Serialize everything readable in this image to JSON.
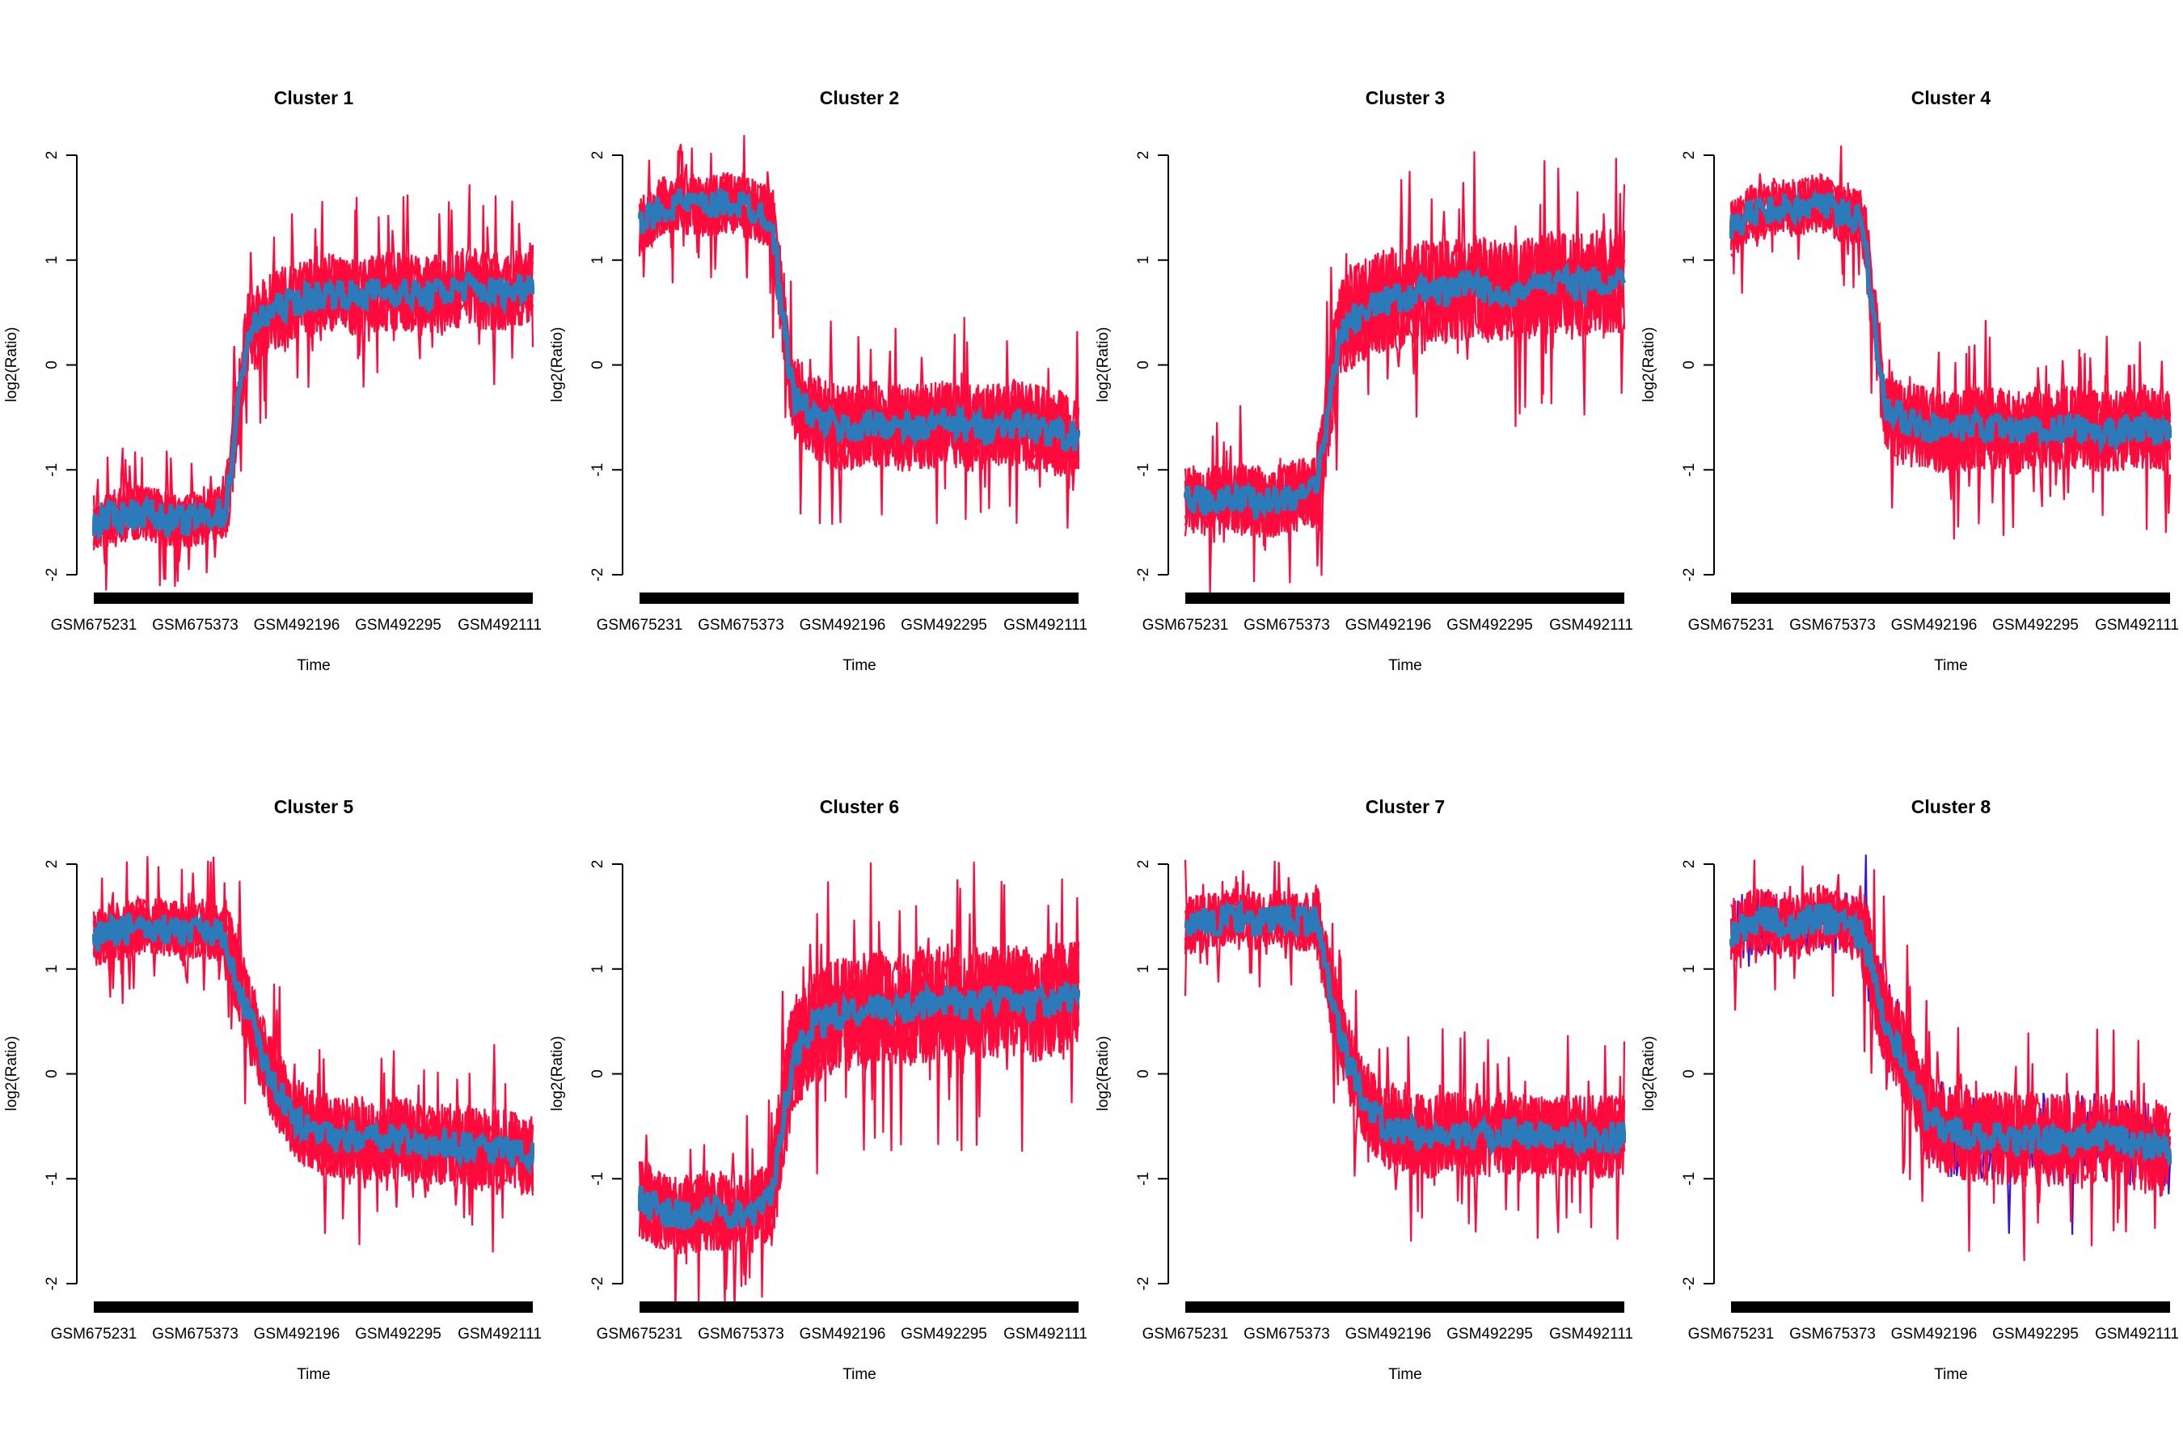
{
  "chart_data": {
    "type": "line",
    "layout": "2x4 grid",
    "colors": {
      "genes": "#ff0a3c",
      "genes_alt": "#3a14d6",
      "mean": "#2b7bba",
      "axis": "#000000"
    },
    "xlabel": "Time",
    "ylabel": "log2(Ratio)",
    "ylim": [
      -2.2,
      2.2
    ],
    "yticks": [
      "-2",
      "-1",
      "0",
      "1",
      "2"
    ],
    "xtick_labels": [
      "GSM675231",
      "GSM675373",
      "GSM492196",
      "GSM492295",
      "GSM492111"
    ],
    "panels": [
      {
        "title": "Cluster 1",
        "spread": 0.38,
        "mean_profile": [
          -1.5,
          -1.45,
          -1.4,
          -1.45,
          -1.5,
          -1.45,
          -1.4,
          0.3,
          0.5,
          0.6,
          0.65,
          0.7,
          0.65,
          0.7,
          0.7,
          0.65,
          0.7,
          0.75,
          0.7,
          0.7,
          0.8
        ]
      },
      {
        "title": "Cluster 2",
        "spread": 0.42,
        "mean_profile": [
          1.3,
          1.5,
          1.55,
          1.5,
          1.55,
          1.5,
          1.4,
          -0.3,
          -0.5,
          -0.6,
          -0.6,
          -0.55,
          -0.6,
          -0.6,
          -0.55,
          -0.6,
          -0.6,
          -0.55,
          -0.6,
          -0.65,
          -0.7
        ]
      },
      {
        "title": "Cluster 3",
        "spread": 0.5,
        "mean_profile": [
          -1.3,
          -1.3,
          -1.25,
          -1.3,
          -1.3,
          -1.25,
          -1.2,
          0.3,
          0.5,
          0.6,
          0.65,
          0.7,
          0.7,
          0.75,
          0.7,
          0.7,
          0.75,
          0.8,
          0.75,
          0.8,
          0.8
        ]
      },
      {
        "title": "Cluster 4",
        "spread": 0.4,
        "mean_profile": [
          1.3,
          1.45,
          1.5,
          1.5,
          1.55,
          1.45,
          1.4,
          -0.4,
          -0.55,
          -0.6,
          -0.65,
          -0.6,
          -0.6,
          -0.65,
          -0.6,
          -0.6,
          -0.6,
          -0.65,
          -0.6,
          -0.6,
          -0.65
        ]
      },
      {
        "title": "Cluster 5",
        "spread": 0.4,
        "mean_profile": [
          1.3,
          1.35,
          1.4,
          1.4,
          1.35,
          1.4,
          1.3,
          0.6,
          0.0,
          -0.4,
          -0.55,
          -0.6,
          -0.6,
          -0.65,
          -0.6,
          -0.7,
          -0.65,
          -0.7,
          -0.7,
          -0.75,
          -0.8
        ]
      },
      {
        "title": "Cluster 6",
        "spread": 0.55,
        "mean_profile": [
          -1.2,
          -1.3,
          -1.35,
          -1.3,
          -1.3,
          -1.35,
          -1.2,
          0.2,
          0.45,
          0.55,
          0.6,
          0.65,
          0.6,
          0.65,
          0.7,
          0.65,
          0.7,
          0.7,
          0.65,
          0.7,
          0.75
        ]
      },
      {
        "title": "Cluster 7",
        "spread": 0.4,
        "mean_profile": [
          1.4,
          1.45,
          1.5,
          1.45,
          1.5,
          1.45,
          1.45,
          0.4,
          -0.2,
          -0.5,
          -0.55,
          -0.6,
          -0.55,
          -0.6,
          -0.6,
          -0.55,
          -0.6,
          -0.6,
          -0.6,
          -0.6,
          -0.6
        ]
      },
      {
        "title": "Cluster 8",
        "spread": 0.45,
        "mean_profile": [
          1.35,
          1.45,
          1.45,
          1.4,
          1.5,
          1.45,
          1.35,
          0.5,
          0.1,
          -0.45,
          -0.55,
          -0.6,
          -0.6,
          -0.65,
          -0.6,
          -0.65,
          -0.6,
          -0.6,
          -0.65,
          -0.7,
          -0.75
        ]
      }
    ]
  }
}
